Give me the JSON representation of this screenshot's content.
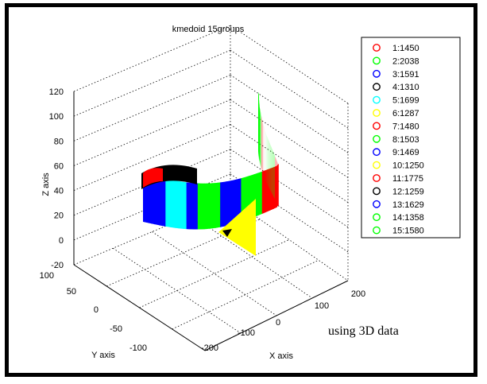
{
  "chart_data": {
    "type": "scatter",
    "title": "kmedoid 15groups",
    "xlabel": "X axis",
    "ylabel": "Y axis",
    "zlabel": "Z axis",
    "xlim": [
      -200,
      200
    ],
    "ylim": [
      -100,
      100
    ],
    "zlim": [
      -20,
      120
    ],
    "x_ticks": [
      "-200",
      "-100",
      "0",
      "100",
      "200"
    ],
    "y_ticks": [
      "-100",
      "-50",
      "0",
      "50",
      "100"
    ],
    "z_ticks": [
      "-20",
      "0",
      "20",
      "40",
      "60",
      "80",
      "100",
      "120"
    ],
    "grid": true,
    "legend_position": "right",
    "series": [
      {
        "name": "1:1450",
        "color": "#ff0000"
      },
      {
        "name": "2:2038",
        "color": "#00ff00"
      },
      {
        "name": "3:1591",
        "color": "#0000ff"
      },
      {
        "name": "4:1310",
        "color": "#000000"
      },
      {
        "name": "5:1699",
        "color": "#00ffff"
      },
      {
        "name": "6:1287",
        "color": "#ffff00"
      },
      {
        "name": "7:1480",
        "color": "#ff0000"
      },
      {
        "name": "8:1503",
        "color": "#00ff00"
      },
      {
        "name": "9:1469",
        "color": "#0000ff"
      },
      {
        "name": "10:1250",
        "color": "#ffff00"
      },
      {
        "name": "11:1775",
        "color": "#ff0000"
      },
      {
        "name": "12:1259",
        "color": "#000000"
      },
      {
        "name": "13:1629",
        "color": "#0000ff"
      },
      {
        "name": "14:1358",
        "color": "#00ff00"
      },
      {
        "name": "15:1580",
        "color": "#00ff00"
      }
    ]
  },
  "annotation": "using 3D data"
}
